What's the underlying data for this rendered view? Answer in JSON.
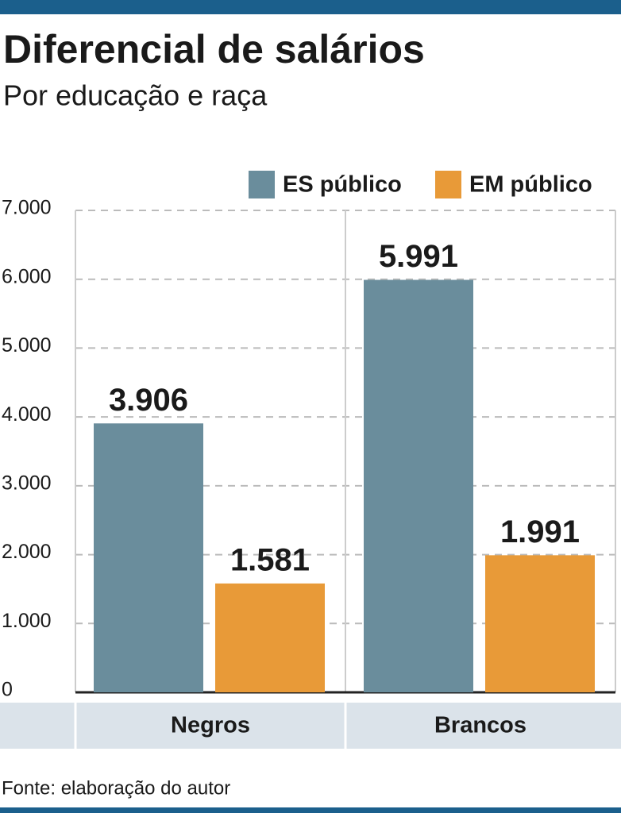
{
  "chart_data": {
    "type": "bar",
    "title": "Diferencial de salários",
    "subtitle": "Por educação e raça",
    "source": "Fonte: elaboração do autor",
    "categories": [
      "Negros",
      "Brancos"
    ],
    "series": [
      {
        "name": "ES público",
        "color": "#6a8d9c",
        "values": [
          3906,
          5991
        ],
        "value_labels": [
          "3.906",
          "5.991"
        ]
      },
      {
        "name": "EM público",
        "color": "#e89a38",
        "values": [
          1581,
          1991
        ],
        "value_labels": [
          "1.581",
          "1.991"
        ]
      }
    ],
    "ylim": [
      0,
      7000
    ],
    "yticks": [
      0,
      {
        "value": 1000,
        "label": "1.000"
      },
      {
        "value": 2000,
        "label": "2.000"
      },
      {
        "value": 3000,
        "label": "3.000"
      },
      {
        "value": 4000,
        "label": "4.000"
      },
      {
        "value": 5000,
        "label": "5.000"
      },
      {
        "value": 6000,
        "label": "6.000"
      },
      {
        "value": 7000,
        "label": "7.000"
      }
    ],
    "grid": true
  }
}
